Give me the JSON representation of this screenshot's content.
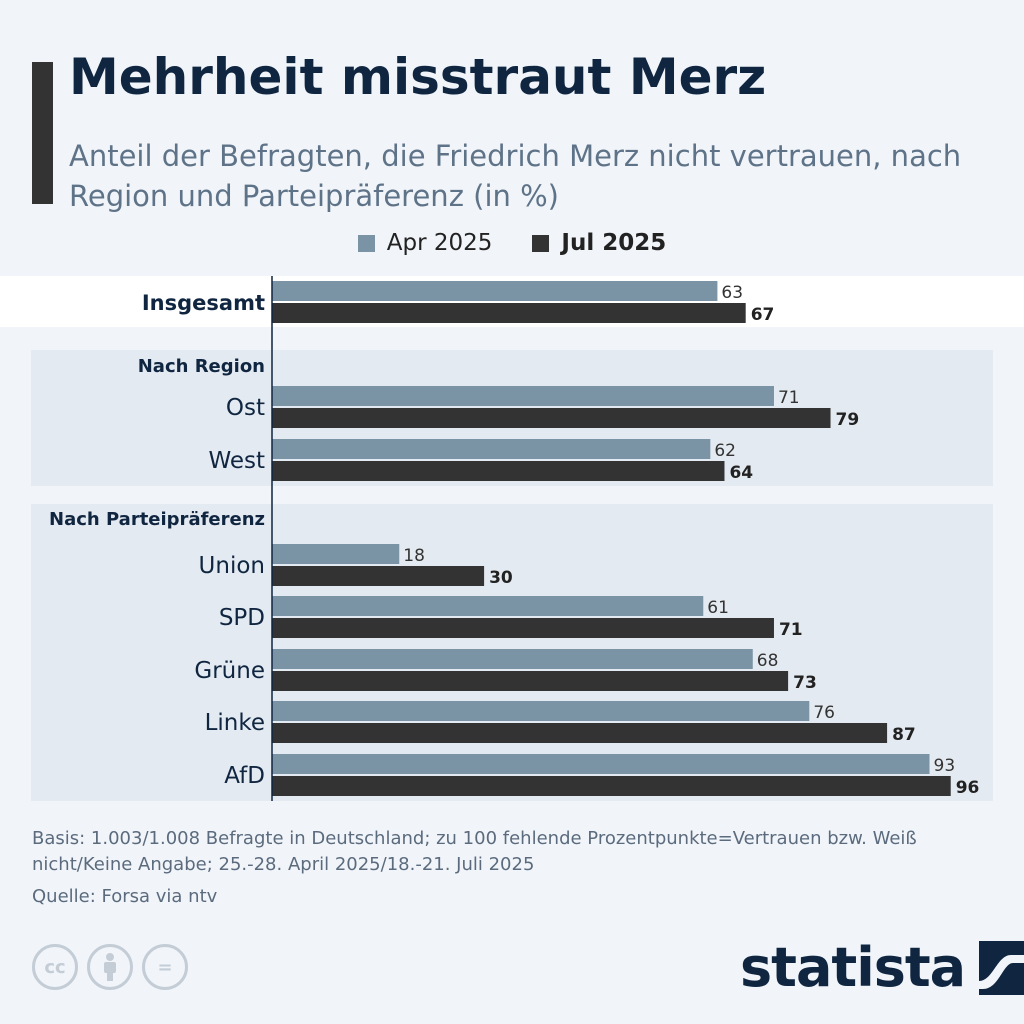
{
  "title": "Mehrheit misstraut Merz",
  "subtitle": "Anteil der Befragten, die Friedrich Merz nicht vertrauen, nach Region und Parteipräferenz (in %)",
  "legend": {
    "apr": "Apr 2025",
    "jul": "Jul 2025"
  },
  "colors": {
    "apr": "#7a93a5",
    "jul": "#333333",
    "text": "#0f2540",
    "panel": "#e4eaf1",
    "highlight": "#ffffff"
  },
  "chart_data": {
    "type": "bar",
    "orientation": "horizontal",
    "xlim": [
      0,
      100
    ],
    "groups": [
      {
        "header": "",
        "categories": [
          "Insgesamt"
        ]
      },
      {
        "header": "Nach Region",
        "categories": [
          "Ost",
          "West"
        ]
      },
      {
        "header": "Nach Parteipräferenz",
        "categories": [
          "Union",
          "SPD",
          "Grüne",
          "Linke",
          "AfD"
        ]
      }
    ],
    "categories": [
      "Insgesamt",
      "Ost",
      "West",
      "Union",
      "SPD",
      "Grüne",
      "Linke",
      "AfD"
    ],
    "series": [
      {
        "name": "Apr 2025",
        "values": [
          63,
          71,
          62,
          18,
          61,
          68,
          76,
          93
        ]
      },
      {
        "name": "Jul 2025",
        "values": [
          67,
          79,
          64,
          30,
          71,
          73,
          87,
          96
        ]
      }
    ]
  },
  "footnote": "Basis: 1.003/1.008 Befragte in Deutschland; zu 100 fehlende Prozentpunkte=Vertrauen bzw. Weiß nicht/Keine Angabe; 25.-28. April 2025/18.-21. Juli 2025",
  "source": "Quelle: Forsa via ntv",
  "license_icons": [
    {
      "name": "cc-icon",
      "glyph": "cc"
    },
    {
      "name": "attribution-icon",
      "glyph": ""
    },
    {
      "name": "no-derivatives-icon",
      "glyph": "="
    }
  ],
  "brand": {
    "logo_text": "statista"
  }
}
